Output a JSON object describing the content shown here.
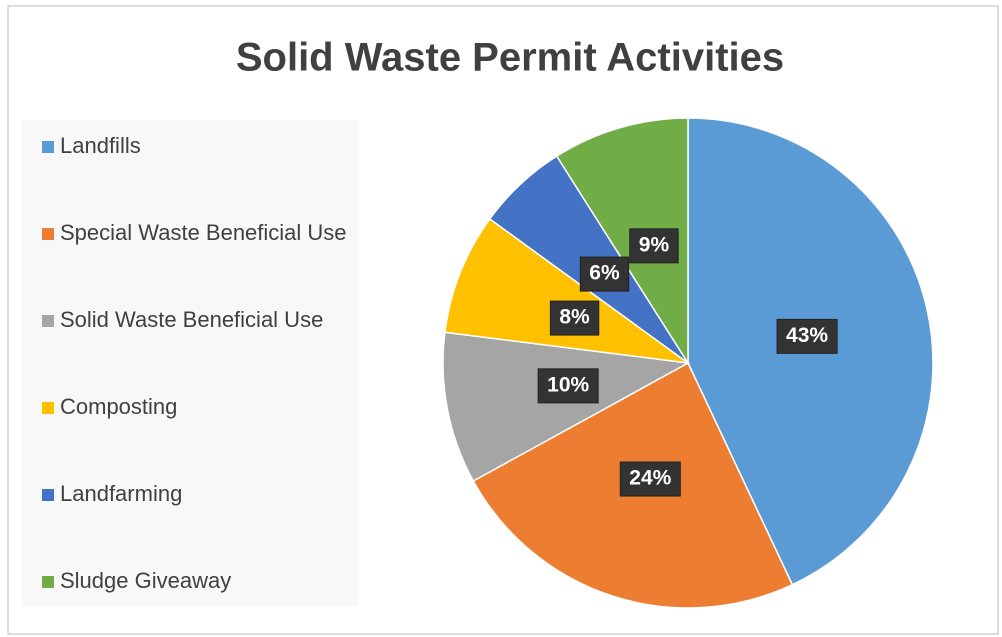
{
  "chart_data": {
    "type": "pie",
    "title": "Solid Waste Permit Activities",
    "categories": [
      "Landfills",
      "Special Waste Beneficial Use",
      "Solid Waste Beneficial Use",
      "Composting",
      "Landfarming",
      "Sludge Giveaway"
    ],
    "values": [
      43,
      24,
      10,
      8,
      6,
      9
    ],
    "value_labels": [
      "43%",
      "24%",
      "10%",
      "8%",
      "6%",
      "9%"
    ],
    "colors": [
      "#5b9bd5",
      "#ed7d31",
      "#a5a5a5",
      "#ffc000",
      "#4472c4",
      "#70ad47"
    ],
    "legend": "left"
  }
}
